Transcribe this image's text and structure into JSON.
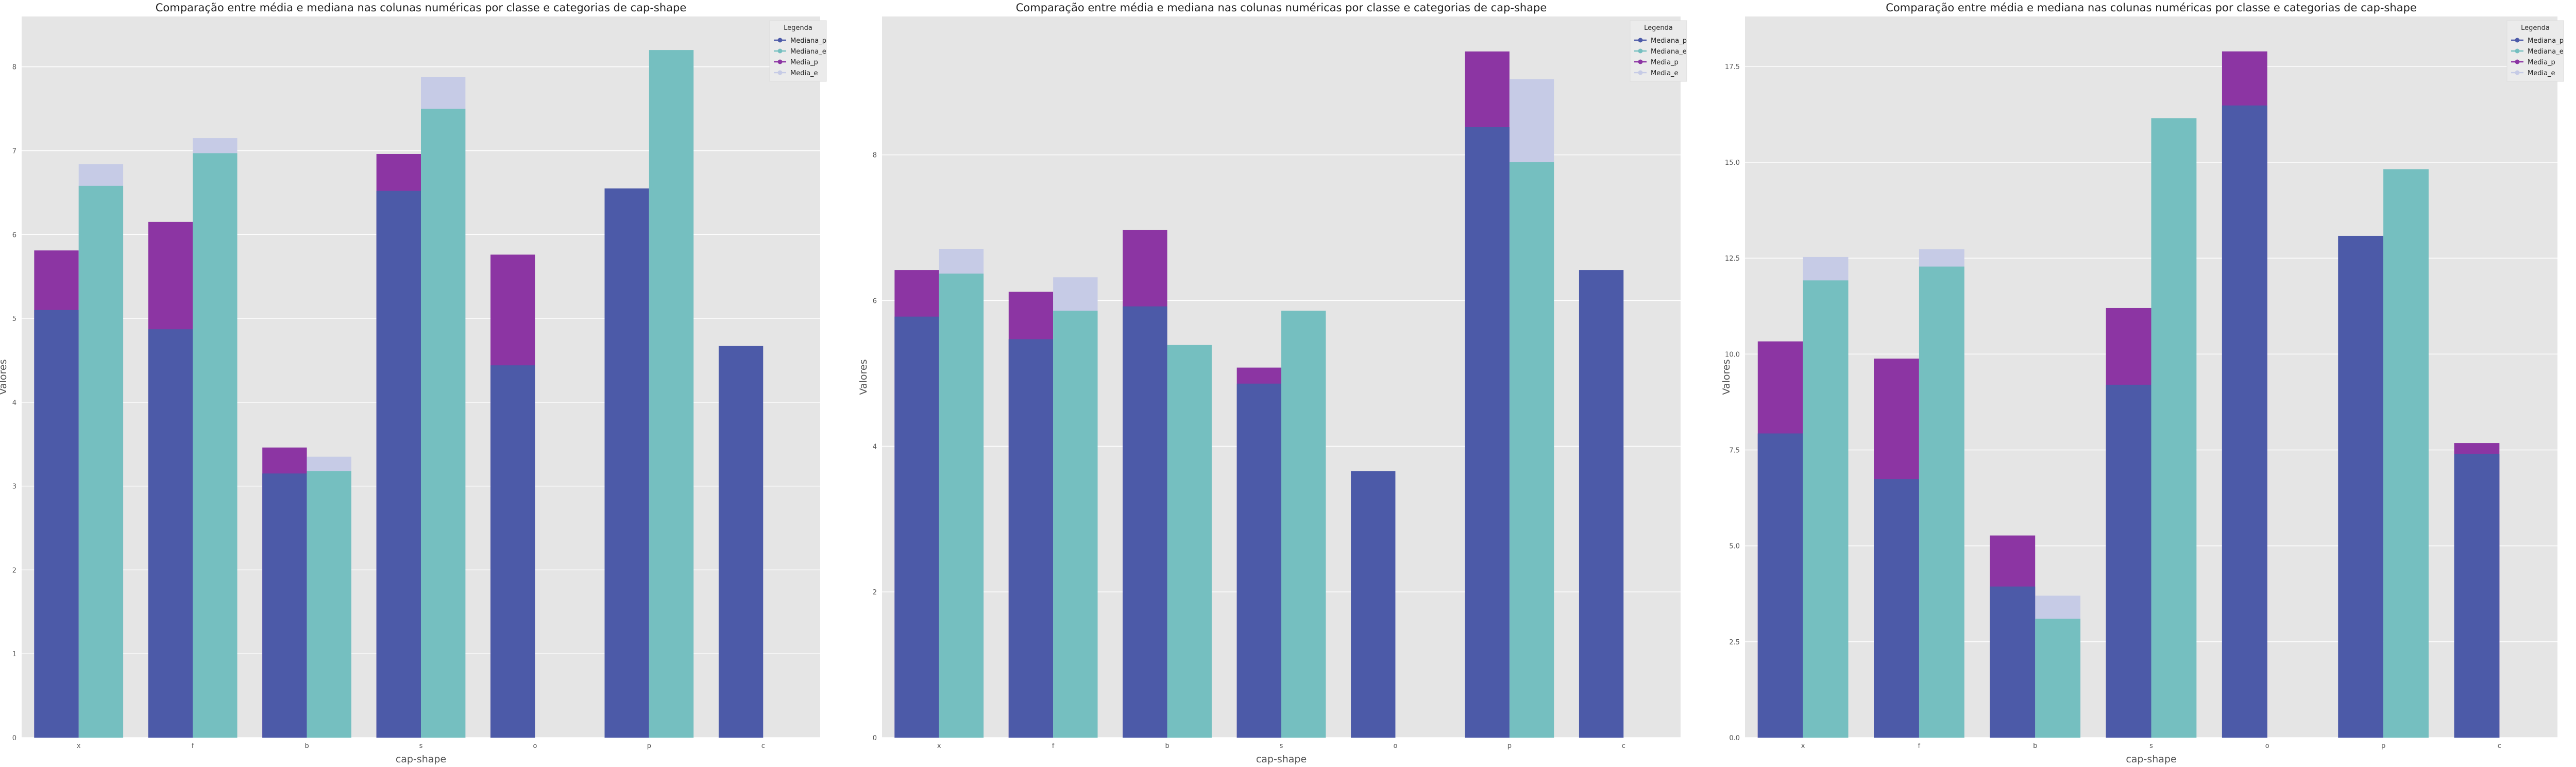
{
  "colors": {
    "mediana_p": "#4c5aa8",
    "mediana_e": "#75bfc0",
    "media_p": "#8c35a3",
    "media_e": "#c6cbe6",
    "panel_bg": "#e5e5e5",
    "grid": "#ffffff"
  },
  "chart_data": [
    {
      "type": "bar",
      "title": "Comparação entre média e mediana nas colunas numéricas por classe e categorias de cap-shape",
      "xlabel": "cap-shape",
      "ylabel": "Valores",
      "ylim": [
        0,
        8.6
      ],
      "yticks": [
        0,
        1,
        2,
        3,
        4,
        5,
        6,
        7,
        8
      ],
      "ytick_labels": [
        "0",
        "1",
        "2",
        "3",
        "4",
        "5",
        "6",
        "7",
        "8"
      ],
      "grid": true,
      "legend_title": "Legenda",
      "legend_position": "top-right",
      "categories": [
        "x",
        "f",
        "b",
        "s",
        "o",
        "p",
        "c"
      ],
      "series": [
        {
          "name": "Mediana_p",
          "group": "p",
          "values": [
            5.1,
            4.87,
            3.15,
            6.52,
            4.44,
            6.55,
            4.67
          ]
        },
        {
          "name": "Mediana_e",
          "group": "e",
          "values": [
            6.58,
            6.97,
            3.18,
            7.5,
            null,
            8.2,
            null
          ]
        },
        {
          "name": "Media_p",
          "group": "p",
          "values": [
            5.81,
            6.15,
            3.46,
            6.96,
            5.76,
            null,
            null
          ]
        },
        {
          "name": "Media_e",
          "group": "e",
          "values": [
            6.84,
            7.15,
            3.35,
            7.88,
            null,
            null,
            null
          ]
        }
      ]
    },
    {
      "type": "bar",
      "title": "Comparação entre média e mediana nas colunas numéricas por classe e categorias de cap-shape",
      "xlabel": "cap-shape",
      "ylabel": "Valores",
      "ylim": [
        0,
        9.9
      ],
      "yticks": [
        0,
        2,
        4,
        6,
        8
      ],
      "ytick_labels": [
        "0",
        "2",
        "4",
        "6",
        "8"
      ],
      "grid": true,
      "legend_title": "Legenda",
      "legend_position": "top-right",
      "categories": [
        "x",
        "f",
        "b",
        "s",
        "o",
        "p",
        "c"
      ],
      "series": [
        {
          "name": "Mediana_p",
          "group": "p",
          "values": [
            5.78,
            5.47,
            5.92,
            4.86,
            3.66,
            8.38,
            6.42
          ]
        },
        {
          "name": "Mediana_e",
          "group": "e",
          "values": [
            6.37,
            5.86,
            5.39,
            5.86,
            null,
            7.9,
            null
          ]
        },
        {
          "name": "Media_p",
          "group": "p",
          "values": [
            6.42,
            6.12,
            6.97,
            5.08,
            null,
            9.42,
            null
          ]
        },
        {
          "name": "Media_e",
          "group": "e",
          "values": [
            6.71,
            6.32,
            null,
            null,
            null,
            9.04,
            null
          ]
        }
      ]
    },
    {
      "type": "bar",
      "title": "Comparação entre média e mediana nas colunas numéricas por classe e categorias de cap-shape",
      "xlabel": "cap-shape",
      "ylabel": "Valores",
      "ylim": [
        0,
        18.8
      ],
      "yticks": [
        0,
        2.5,
        5,
        7.5,
        10,
        12.5,
        15,
        17.5
      ],
      "ytick_labels": [
        "0.0",
        "2.5",
        "5.0",
        "7.5",
        "10.0",
        "12.5",
        "15.0",
        "17.5"
      ],
      "grid": true,
      "legend_title": "Legenda",
      "legend_position": "top-right",
      "categories": [
        "x",
        "f",
        "b",
        "s",
        "o",
        "p",
        "c"
      ],
      "series": [
        {
          "name": "Mediana_p",
          "group": "p",
          "values": [
            7.93,
            6.74,
            3.94,
            9.2,
            16.48,
            13.08,
            7.4
          ]
        },
        {
          "name": "Mediana_e",
          "group": "e",
          "values": [
            11.92,
            12.28,
            3.1,
            16.15,
            null,
            14.82,
            null
          ]
        },
        {
          "name": "Media_p",
          "group": "p",
          "values": [
            10.33,
            9.88,
            5.27,
            11.2,
            17.89,
            null,
            7.68
          ]
        },
        {
          "name": "Media_e",
          "group": "e",
          "values": [
            12.53,
            12.73,
            3.7,
            null,
            null,
            null,
            null
          ]
        }
      ]
    }
  ]
}
